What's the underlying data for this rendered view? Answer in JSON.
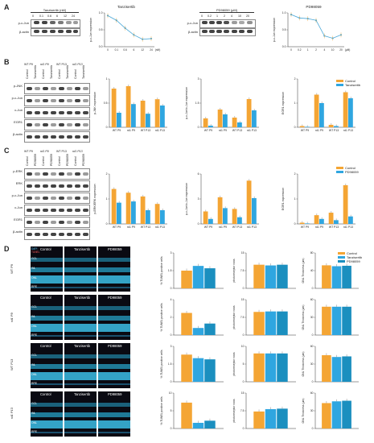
{
  "colors": {
    "control": "#f4a534",
    "tanz": "#2fa6e0",
    "pd": "#2fa6e0",
    "line": "#4aa8d8"
  },
  "panels": [
    "A",
    "B",
    "C",
    "D"
  ],
  "A": {
    "blot1": {
      "header": "Tanzisertib (nM)",
      "lanes": [
        "0",
        "0.1",
        "0.6",
        "6",
        "12",
        "24"
      ],
      "rows": [
        "p-c-Jun",
        "β-actin"
      ]
    },
    "chart1": {
      "title": "Tanzisertib",
      "ylabel": "p-c-Jun expression",
      "xlabel": "(nM)"
    },
    "blot2": {
      "header": "PD98059 (μM)",
      "lanes": [
        "0",
        "0.2",
        "1",
        "2",
        "4",
        "10",
        "20"
      ],
      "rows": [
        "p-c-Jun",
        "β-actin"
      ]
    },
    "chart2": {
      "title": "PD98059",
      "ylabel": "p-c-Jun expression",
      "xlabel": "(μM)"
    }
  },
  "B": {
    "groups": [
      "WT P9",
      "rd1 P9",
      "WT P13",
      "rd1 P13"
    ],
    "lanes": [
      "Control",
      "Tanzisertib",
      "Control",
      "Tanzisertib",
      "Control",
      "Tanzisertib",
      "Control",
      "Tanzisertib"
    ],
    "rows": [
      "p-JNK",
      "p-c-Jun",
      "c-Jun",
      "EGR1",
      "β-actin"
    ],
    "legend": [
      "Control",
      "Tanzisertib"
    ],
    "ylabels": [
      "p-JNK expression",
      "p-c-Jun/c-Jun expression",
      "EGR1 expression"
    ]
  },
  "C": {
    "groups": [
      "WT P9",
      "rd1 P9",
      "WT P13",
      "rd1 P13"
    ],
    "lanes": [
      "Control",
      "PD98059",
      "Control",
      "PD98059",
      "Control",
      "PD98059",
      "Control",
      "PD98059"
    ],
    "rows": [
      "p-ERK",
      "ERK",
      "p-c-Jun",
      "c-Jun",
      "EGR1",
      "β-actin"
    ],
    "legend": [
      "Control",
      "PD98059"
    ],
    "ylabels": [
      "p-ERK/ERK expression",
      "p-c-Jun/c-Jun expression",
      "EGR1 expression"
    ]
  },
  "D": {
    "rows": [
      "WT P9",
      "rd1 P9",
      "WT P13",
      "rd1 P13"
    ],
    "cols": [
      "Control",
      "Tanzisertib",
      "PD98059"
    ],
    "layers": [
      "GCL",
      "INL",
      "ONL",
      "RPE"
    ],
    "stains": [
      "DAPI",
      "TUNEL"
    ],
    "legend": [
      "Control",
      "Tanzisertib",
      "PD98059"
    ],
    "ylabels": [
      "% TUNEL positive cells",
      "photoreceptor rows",
      "ONL Thickness (μm)"
    ]
  },
  "chart_data": [
    {
      "type": "line",
      "title": "Tanzisertib",
      "x": [
        "0",
        "0.1",
        "0.6",
        "6",
        "12",
        "24"
      ],
      "values": [
        0.92,
        0.78,
        0.55,
        0.35,
        0.22,
        0.24
      ],
      "ylabel": "p-c-Jun expression",
      "xlabel": "(nM)"
    },
    {
      "type": "line",
      "title": "PD98059",
      "x": [
        "0",
        "0.2",
        "1",
        "2",
        "4",
        "10",
        "20"
      ],
      "values": [
        0.95,
        0.85,
        0.83,
        0.78,
        0.32,
        0.25,
        0.35
      ],
      "ylabel": "p-c-Jun expression",
      "xlabel": "(μM)"
    },
    {
      "type": "bar",
      "categories": [
        "WT P9",
        "rd1 P9",
        "WT P13",
        "rd1 P13"
      ],
      "ylabel": "p-JNK expression",
      "series": [
        {
          "name": "Control",
          "values": [
            0.8,
            0.85,
            0.55,
            0.58
          ]
        },
        {
          "name": "Tanzisertib",
          "values": [
            0.3,
            0.48,
            0.28,
            0.45
          ]
        }
      ]
    },
    {
      "type": "bar",
      "categories": [
        "WT P9",
        "rd1 P9",
        "WT P13",
        "rd1 P13"
      ],
      "ylabel": "p-c-Jun/c-Jun expression",
      "series": [
        {
          "name": "Control",
          "values": [
            0.55,
            1.1,
            0.6,
            1.75
          ]
        },
        {
          "name": "Tanzisertib",
          "values": [
            0.1,
            0.8,
            0.3,
            1.05
          ]
        }
      ]
    },
    {
      "type": "bar",
      "categories": [
        "WT P9",
        "rd1 P9",
        "WT P13",
        "rd1 P13"
      ],
      "ylabel": "EGR1 expression",
      "series": [
        {
          "name": "Control",
          "values": [
            0.05,
            1.35,
            0.1,
            1.45
          ]
        },
        {
          "name": "Tanzisertib",
          "values": [
            0.02,
            1.0,
            0.05,
            1.2
          ]
        }
      ]
    },
    {
      "type": "bar",
      "categories": [
        "WT P9",
        "rd1 P9",
        "WT P13",
        "rd1 P13"
      ],
      "ylabel": "p-ERK/ERK expression",
      "series": [
        {
          "name": "Control",
          "values": [
            1.4,
            1.25,
            1.1,
            0.8
          ]
        },
        {
          "name": "PD98059",
          "values": [
            0.85,
            0.9,
            0.55,
            0.55
          ]
        }
      ]
    },
    {
      "type": "bar",
      "categories": [
        "WT P9",
        "rd1 P9",
        "WT P13",
        "rd1 P13"
      ],
      "ylabel": "p-c-Jun/c-Jun expression",
      "series": [
        {
          "name": "Control",
          "values": [
            1.5,
            3.2,
            1.8,
            5.2
          ]
        },
        {
          "name": "PD98059",
          "values": [
            0.6,
            1.9,
            0.8,
            3.1
          ]
        }
      ]
    },
    {
      "type": "bar",
      "categories": [
        "WT P9",
        "rd1 P9",
        "WT P13",
        "rd1 P13"
      ],
      "ylabel": "EGR1 expression",
      "series": [
        {
          "name": "Control",
          "values": [
            0.05,
            0.35,
            0.45,
            1.55
          ]
        },
        {
          "name": "PD98059",
          "values": [
            0.02,
            0.2,
            0.15,
            0.3
          ]
        }
      ]
    },
    {
      "type": "bar",
      "categories": [
        "WT P9",
        "rd1 P9",
        "WT P13",
        "rd1 P13"
      ],
      "ylabel": "% TUNEL positive cells",
      "series": [
        {
          "name": "Control",
          "values": [
            1.5,
            2.5,
            2.3,
            7.3
          ]
        },
        {
          "name": "Tanzisertib",
          "values": [
            1.9,
            0.8,
            2.0,
            1.6
          ]
        },
        {
          "name": "PD98059",
          "values": [
            1.7,
            1.3,
            1.9,
            2.2
          ]
        }
      ]
    },
    {
      "type": "bar",
      "categories": [
        "WT P9",
        "rd1 P9",
        "WT P13",
        "rd1 P13"
      ],
      "ylabel": "photoreceptor rows",
      "series": [
        {
          "name": "Control",
          "values": [
            10,
            9.8,
            8,
            7.2
          ]
        },
        {
          "name": "Tanzisertib",
          "values": [
            9.7,
            10,
            8,
            8.2
          ]
        },
        {
          "name": "PD98059",
          "values": [
            10,
            10,
            8,
            8.4
          ]
        }
      ]
    },
    {
      "type": "bar",
      "categories": [
        "WT P9",
        "rd1 P9",
        "WT P13",
        "rd1 P13"
      ],
      "ylabel": "ONL Thickness (μm)",
      "series": [
        {
          "name": "Control",
          "values": [
            52,
            48,
            45,
            43
          ]
        },
        {
          "name": "Tanzisertib",
          "values": [
            50,
            48,
            42,
            46
          ]
        },
        {
          "name": "PD98059",
          "values": [
            51,
            48,
            43,
            47
          ]
        }
      ]
    }
  ]
}
